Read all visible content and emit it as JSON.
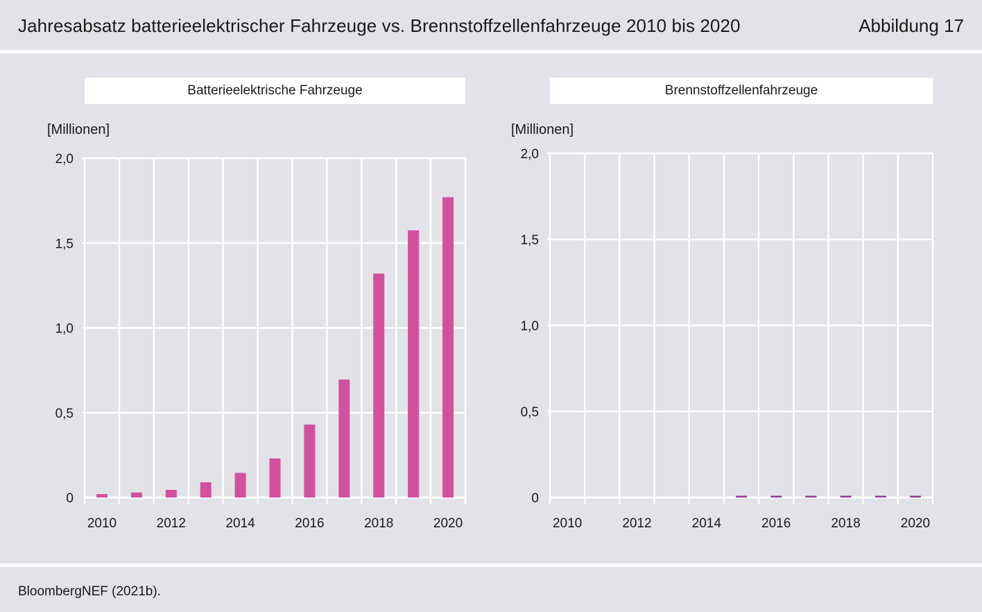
{
  "header": {
    "title": "Jahresabsatz batterieelektrischer Fahrzeuge vs. Brennstoffzellenfahrzeuge 2010 bis 2020",
    "figure_no": "Abbildung 17"
  },
  "footer": {
    "source": "BloombergNEF (2021b)."
  },
  "colors": {
    "bev": "#d3509c",
    "fcev": "#8b3f8f",
    "grid": "#ffffff",
    "background": "#e1e3e8"
  },
  "chart_data": [
    {
      "type": "bar",
      "title": "Batterieelektrische Fahrzeuge",
      "ylabel": "[Millionen]",
      "ylim": [
        0,
        2.0
      ],
      "yticks": [
        "0",
        "0,5",
        "1,0",
        "1,5",
        "2,0"
      ],
      "xtick_labels": [
        "2010",
        "2012",
        "2014",
        "2016",
        "2018",
        "2020"
      ],
      "categories": [
        "2010",
        "2011",
        "2012",
        "2013",
        "2014",
        "2015",
        "2016",
        "2017",
        "2018",
        "2019",
        "2020"
      ],
      "values": [
        0.02,
        0.03,
        0.045,
        0.09,
        0.145,
        0.23,
        0.43,
        0.695,
        1.32,
        1.575,
        1.77
      ],
      "grid": true
    },
    {
      "type": "bar",
      "title": "Brennstoffzellenfahrzeuge",
      "ylabel": "[Millionen]",
      "ylim": [
        0,
        2.0
      ],
      "yticks": [
        "0",
        "0,5",
        "1,0",
        "1,5",
        "2,0"
      ],
      "xtick_labels": [
        "2010",
        "2012",
        "2014",
        "2016",
        "2018",
        "2020"
      ],
      "categories": [
        "2010",
        "2011",
        "2012",
        "2013",
        "2014",
        "2015",
        "2016",
        "2017",
        "2018",
        "2019",
        "2020"
      ],
      "values": [
        0,
        0,
        0,
        0,
        0,
        0.003,
        0.003,
        0.004,
        0.004,
        0.004,
        0.004
      ],
      "grid": true
    }
  ]
}
